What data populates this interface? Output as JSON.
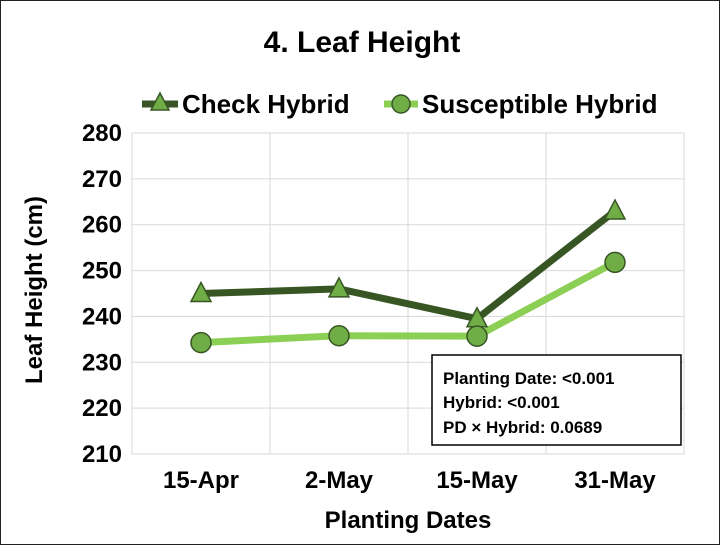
{
  "chart_data": {
    "type": "line",
    "title": "4. Leaf Height",
    "xlabel": "Planting Dates",
    "ylabel": "Leaf Height (cm)",
    "categories": [
      "15-Apr",
      "2-May",
      "15-May",
      "31-May"
    ],
    "ylim": [
      210,
      280
    ],
    "yticks": [
      210,
      220,
      230,
      240,
      250,
      260,
      270,
      280
    ],
    "grid": true,
    "legend_position": "top",
    "series": [
      {
        "name": "Check Hybrid",
        "marker": "triangle",
        "color": "#375623",
        "marker_color": "#70AD47",
        "values": [
          245,
          246,
          239.5,
          263
        ]
      },
      {
        "name": "Susceptible Hybrid",
        "marker": "circle",
        "color": "#8CCF55",
        "marker_color": "#70AD47",
        "values": [
          234.3,
          235.8,
          235.7,
          251.8
        ]
      }
    ],
    "annotation": [
      "Planting Date: <0.001",
      "Hybrid: <0.001",
      "PD × Hybrid: 0.0689"
    ]
  }
}
